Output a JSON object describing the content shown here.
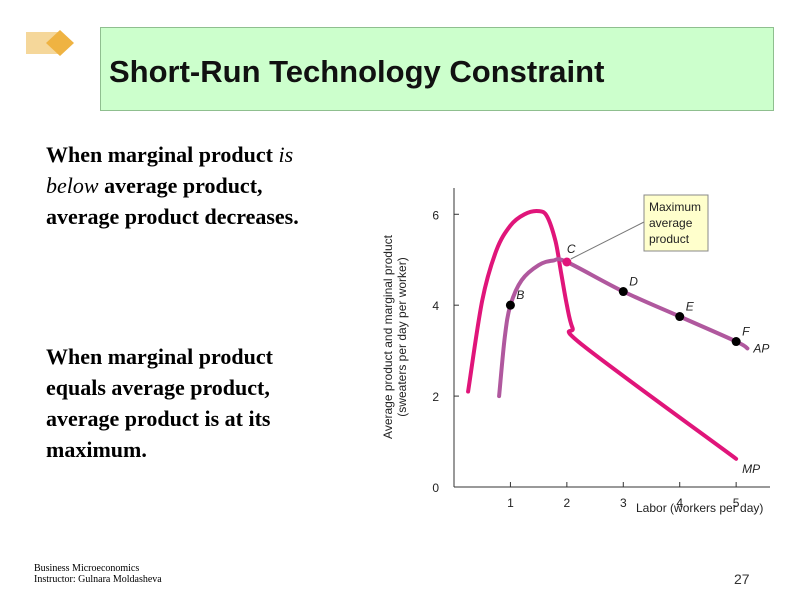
{
  "slide": {
    "title": "Short-Run Technology Constraint",
    "para1": {
      "part1": "When marginal product ",
      "italic": "is below",
      "part2": " average product, average product decreases."
    },
    "para2": "When marginal product equals average product, average product is at its maximum.",
    "footer_line1": "Business Microeconomics",
    "footer_line2": "Instructor: Gulnara Moldasheva",
    "page_number": "27"
  },
  "chart_data": {
    "type": "line",
    "xlabel": "Labor (workers per day)",
    "ylabel_line1": "Average product and marginal product",
    "ylabel_line2": "(sweaters per day per worker)",
    "x_ticks": [
      "1",
      "2",
      "3",
      "4",
      "5"
    ],
    "y_ticks": [
      "0",
      "2",
      "4",
      "6"
    ],
    "xlim": [
      0,
      5.6
    ],
    "ylim": [
      0,
      6.6
    ],
    "series": [
      {
        "name": "MP",
        "color": "#e0157a",
        "points": [
          [
            0.25,
            2.1
          ],
          [
            0.5,
            4.1
          ],
          [
            0.75,
            5.2
          ],
          [
            1.0,
            5.75
          ],
          [
            1.25,
            6.0
          ],
          [
            1.5,
            6.07
          ],
          [
            1.65,
            5.95
          ],
          [
            1.8,
            5.4
          ],
          [
            1.9,
            4.7
          ],
          [
            2.0,
            4.0
          ],
          [
            2.1,
            3.5
          ],
          [
            2.3,
            3.1
          ],
          [
            5.0,
            0.62
          ]
        ]
      },
      {
        "name": "AP",
        "color": "#b0589e",
        "points": [
          [
            0.8,
            2.0
          ],
          [
            0.9,
            3.3
          ],
          [
            1.0,
            4.0
          ],
          [
            1.2,
            4.55
          ],
          [
            1.5,
            4.88
          ],
          [
            1.75,
            4.98
          ],
          [
            2.0,
            4.95
          ],
          [
            3.0,
            4.3
          ],
          [
            4.0,
            3.75
          ],
          [
            5.0,
            3.2
          ],
          [
            5.2,
            3.05
          ]
        ]
      }
    ],
    "points": [
      {
        "label": "B",
        "x": 1.0,
        "y": 4.0,
        "color": "#000000"
      },
      {
        "label": "C",
        "x": 2.0,
        "y": 4.95,
        "color": "#e0157a"
      },
      {
        "label": "D",
        "x": 3.0,
        "y": 4.3,
        "color": "#000000"
      },
      {
        "label": "E",
        "x": 4.0,
        "y": 3.75,
        "color": "#000000"
      },
      {
        "label": "F",
        "x": 5.0,
        "y": 3.2,
        "color": "#000000"
      }
    ],
    "annotation": {
      "line1": "Maximum",
      "line2": "average",
      "line3": "product",
      "target": "C",
      "background": "#ffffcc"
    }
  }
}
